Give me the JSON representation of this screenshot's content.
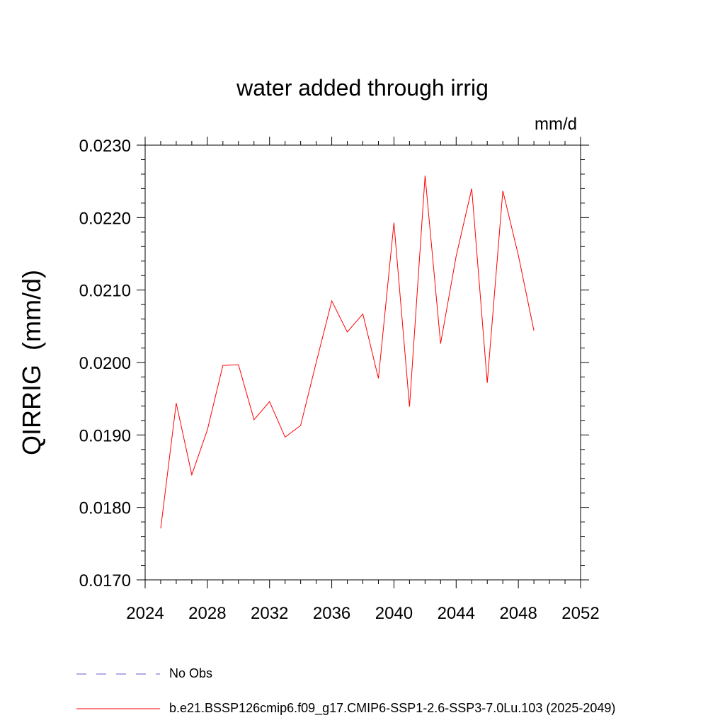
{
  "chart_data": {
    "type": "line",
    "title": "water added through irrig",
    "units": "mm/d",
    "ylabel": "QIRRIG  (mm/d)",
    "xlabel": "",
    "xlim": [
      2024,
      2052
    ],
    "ylim": [
      0.017,
      0.023
    ],
    "xticks": [
      2024,
      2028,
      2032,
      2036,
      2040,
      2044,
      2048,
      2052
    ],
    "xtick_labels": [
      "2024",
      "2028",
      "2032",
      "2036",
      "2040",
      "2044",
      "2048",
      "2052"
    ],
    "yticks": [
      0.017,
      0.018,
      0.019,
      0.02,
      0.021,
      0.022,
      0.023
    ],
    "ytick_labels": [
      "0.0170",
      "0.0180",
      "0.0190",
      "0.0200",
      "0.0210",
      "0.0220",
      "0.0230"
    ],
    "grid": false,
    "legend_position": "bottom",
    "series": [
      {
        "name": "No Obs",
        "color": "#6a5acd",
        "style": "dashed",
        "x": [],
        "values": []
      },
      {
        "name": "b.e21.BSSP126cmip6.f09_g17.CMIP6-SSP1-2.6-SSP3-7.0Lu.103 (2025-2049)",
        "color": "#ff0000",
        "style": "solid",
        "x": [
          2025,
          2026,
          2027,
          2028,
          2029,
          2030,
          2031,
          2032,
          2033,
          2034,
          2035,
          2036,
          2037,
          2038,
          2039,
          2040,
          2041,
          2042,
          2043,
          2044,
          2045,
          2046,
          2047,
          2048,
          2049
        ],
        "values": [
          0.01771,
          0.01944,
          0.01845,
          0.01907,
          0.01996,
          0.01997,
          0.01921,
          0.01946,
          0.01897,
          0.01913,
          0.02,
          0.02085,
          0.02042,
          0.02067,
          0.01978,
          0.02193,
          0.01939,
          0.02258,
          0.02026,
          0.02147,
          0.0224,
          0.01972,
          0.02237,
          0.02148,
          0.02044
        ]
      }
    ]
  }
}
